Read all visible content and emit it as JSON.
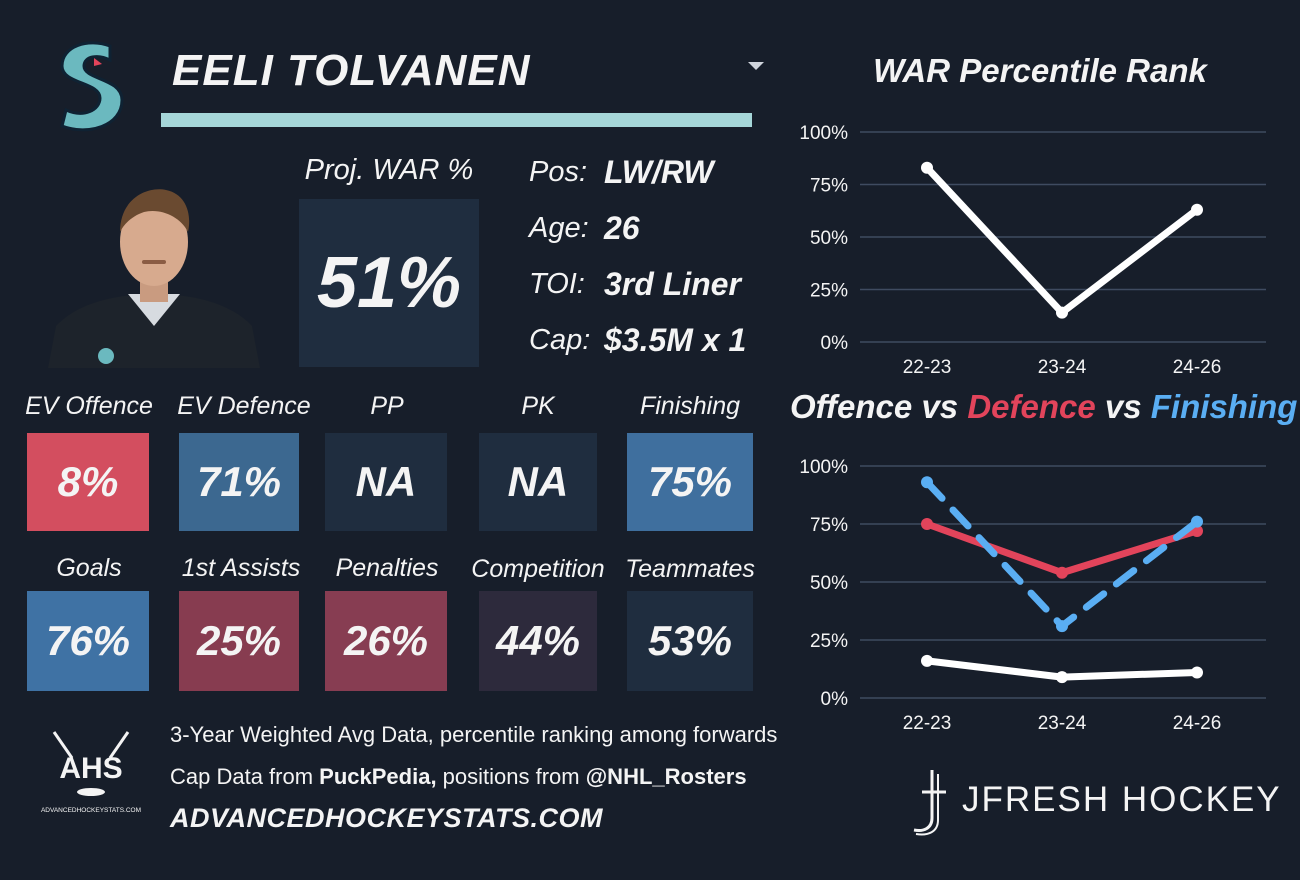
{
  "player": {
    "name": "EELI TOLVANEN"
  },
  "colors": {
    "background": "#171e2a",
    "accent_bar": "#a5d6d8",
    "offence_line": "#e2445b",
    "finishing_line": "#5aaef3",
    "war_line": "#ffffff"
  },
  "projection": {
    "label": "Proj. WAR %",
    "value": "51%"
  },
  "info": [
    {
      "label": "Pos:",
      "value": "LW/RW"
    },
    {
      "label": "Age:",
      "value": "26"
    },
    {
      "label": "TOI:",
      "value": "3rd Liner"
    },
    {
      "label": "Cap:",
      "value": "$3.5M x 1"
    }
  ],
  "stats": [
    {
      "label": "EV Offence",
      "value": "8%",
      "color": "#d34e5f"
    },
    {
      "label": "EV Defence",
      "value": "71%",
      "color": "#3c6890"
    },
    {
      "label": "PP",
      "value": "NA",
      "color": "#1f2d3f"
    },
    {
      "label": "PK",
      "value": "NA",
      "color": "#1f2d3f"
    },
    {
      "label": "Finishing",
      "value": "75%",
      "color": "#3f6f9e"
    },
    {
      "label": "Goals",
      "value": "76%",
      "color": "#3f72a4"
    },
    {
      "label": "1st Assists",
      "value": "25%",
      "color": "#873c50"
    },
    {
      "label": "Penalties",
      "value": "26%",
      "color": "#873d52"
    },
    {
      "label": "Competition",
      "value": "44%",
      "color": "#2d2a3c"
    },
    {
      "label": "Teammates",
      "value": "53%",
      "color": "#1f2d3f"
    }
  ],
  "footer": {
    "line1": "3-Year Weighted Avg Data, percentile ranking among forwards",
    "line2_prefix": "Cap Data from ",
    "line2_source": "PuckPedia,",
    "line2_mid": " positions from ",
    "line2_handle": "@NHL_Rosters",
    "site": "ADVANCEDHOCKEYSTATS.COM",
    "ahs_logo_text": "AHS",
    "ahs_logo_subtext": "ADVANCEDHOCKEYSTATS.COM",
    "brand": "JFRESH HOCKEY"
  },
  "chart_data": [
    {
      "type": "line",
      "title": "WAR Percentile Rank",
      "categories": [
        "22-23",
        "23-24",
        "24-26"
      ],
      "ylim": [
        0,
        100
      ],
      "yticks": [
        "0%",
        "25%",
        "50%",
        "75%",
        "100%"
      ],
      "grid": true,
      "series": [
        {
          "values": [
            83,
            14,
            63
          ],
          "color": "#ffffff",
          "dash": false
        }
      ]
    },
    {
      "type": "line",
      "title_parts": [
        "Offence",
        " vs ",
        "Defence",
        " vs ",
        "Finishing"
      ],
      "categories": [
        "22-23",
        "23-24",
        "24-26"
      ],
      "ylim": [
        0,
        100
      ],
      "yticks": [
        "0%",
        "25%",
        "50%",
        "75%",
        "100%"
      ],
      "grid": true,
      "series": [
        {
          "values": [
            16,
            9,
            11
          ],
          "color": "#ffffff",
          "dash": false
        },
        {
          "values": [
            75,
            54,
            72
          ],
          "color": "#e2445b",
          "dash": false
        },
        {
          "values": [
            93,
            31,
            76
          ],
          "color": "#5aaef3",
          "dash": true
        }
      ]
    }
  ]
}
